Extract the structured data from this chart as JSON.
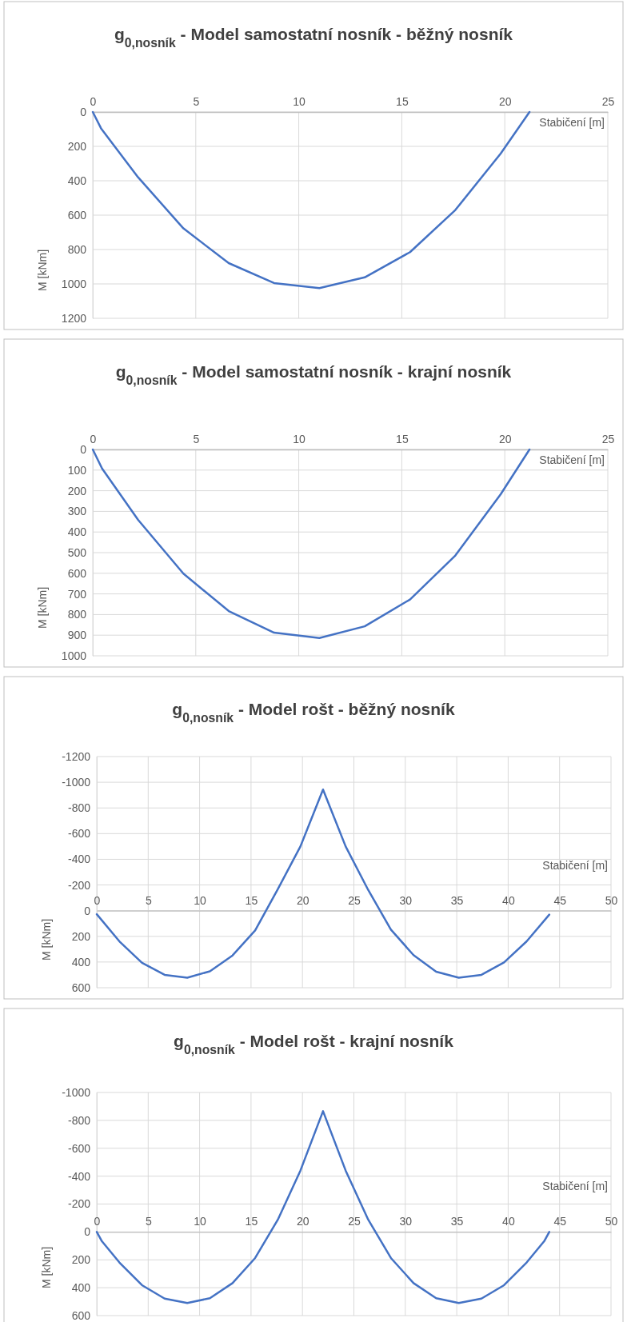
{
  "chart_data": [
    {
      "type": "line",
      "title": "g$_{0,nosník}$ - Model samostatní nosník - běžný nosník",
      "xlabel": "Stabičení [m]",
      "ylabel": "M [kNm]",
      "grid": true,
      "line_style": "solid",
      "x": [
        0,
        0.4,
        2.2,
        4.4,
        6.6,
        8.8,
        11,
        13.2,
        15.4,
        17.6,
        19.8,
        21.2
      ],
      "series": [
        {
          "color": "#4472c4",
          "values": [
            0,
            95,
            380,
            677,
            879,
            995,
            1024,
            962,
            815,
            570,
            242,
            0
          ]
        }
      ],
      "xlim": [
        0,
        25
      ],
      "xticks": [
        0,
        5,
        10,
        15,
        20,
        25
      ],
      "ylim": [
        1200,
        0
      ],
      "yticks": [
        0,
        200,
        400,
        600,
        800,
        1000,
        1200
      ]
    },
    {
      "type": "line",
      "title": "g$_{0,nosník}$ - Model samostatní nosník - krajní nosník",
      "xlabel": "Stabičení [m]",
      "ylabel": "M [kNm]",
      "grid": true,
      "line_style": "solid",
      "x": [
        0,
        0.45,
        2.2,
        4.4,
        6.6,
        8.8,
        11,
        13.2,
        15.4,
        17.6,
        19.8,
        21.2
      ],
      "series": [
        {
          "color": "#4472c4",
          "values": [
            0,
            92,
            341,
            602,
            783,
            888,
            914,
            857,
            727,
            514,
            217,
            0
          ]
        }
      ],
      "xlim": [
        0,
        25
      ],
      "xticks": [
        0,
        5,
        10,
        15,
        20,
        25
      ],
      "ylim": [
        1000,
        0
      ],
      "yticks": [
        0,
        100,
        200,
        300,
        400,
        500,
        600,
        700,
        800,
        900,
        1000
      ]
    },
    {
      "type": "line",
      "title": "g$_{0,nosník}$ - Model rošt - běžný nosník",
      "xlabel": "Stabičení [m]",
      "ylabel": "M [kNm]",
      "grid": true,
      "line_style": "solid",
      "x": [
        0,
        2.2,
        4.4,
        6.6,
        8.8,
        11,
        13.2,
        15.4,
        17.6,
        19.8,
        22,
        24.2,
        26.4,
        28.6,
        30.8,
        33,
        35.2,
        37.4,
        39.6,
        41.8,
        44
      ],
      "series": [
        {
          "color": "#4472c4",
          "values": [
            28,
            239,
            406,
            500,
            522,
            472,
            349,
            154,
            -167,
            -500,
            -943,
            -500,
            -160,
            148,
            346,
            475,
            522,
            500,
            403,
            239,
            31
          ]
        }
      ],
      "xlim": [
        0,
        50
      ],
      "xticks": [
        0,
        5,
        10,
        15,
        20,
        25,
        30,
        35,
        40,
        45,
        50
      ],
      "ylim": [
        600,
        -1200
      ],
      "yticks": [
        -1200,
        -1000,
        -800,
        -600,
        -400,
        -200,
        0,
        200,
        400,
        600
      ]
    },
    {
      "type": "line",
      "title": "g$_{0,nosník}$ - Model rošt - krajní nosník",
      "xlabel": "Stabičení [m]",
      "ylabel": "M [kNm]",
      "grid": true,
      "line_style": "solid",
      "x": [
        0,
        0.5,
        2.2,
        4.4,
        6.6,
        8.8,
        11,
        13.2,
        15.4,
        17.6,
        19.8,
        22,
        24.2,
        26.4,
        28.6,
        30.8,
        33,
        35.2,
        37.4,
        39.6,
        41.8,
        43.5,
        44
      ],
      "series": [
        {
          "color": "#4472c4",
          "values": [
            0,
            67,
            219,
            382,
            478,
            510,
            475,
            367,
            187,
            -87,
            -440,
            -866,
            -440,
            -87,
            187,
            367,
            475,
            510,
            478,
            382,
            219,
            67,
            0
          ]
        }
      ],
      "xlim": [
        0,
        50
      ],
      "xticks": [
        0,
        5,
        10,
        15,
        20,
        25,
        30,
        35,
        40,
        45,
        50
      ],
      "ylim": [
        600,
        -1000
      ],
      "yticks": [
        -1000,
        -800,
        -600,
        -400,
        -200,
        0,
        200,
        400,
        600
      ]
    }
  ]
}
